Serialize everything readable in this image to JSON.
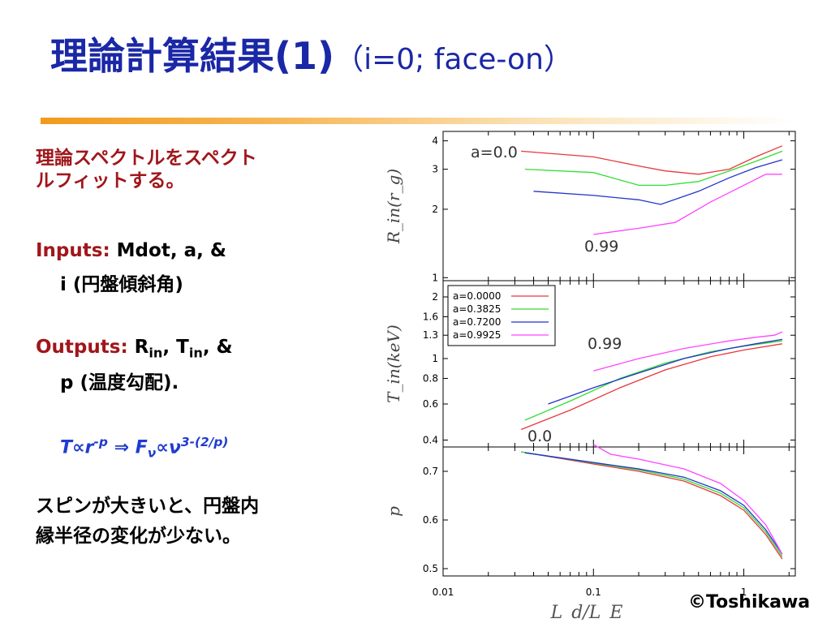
{
  "title": {
    "main": "理論計算結果(1)",
    "sub": "（i=0; face-on）"
  },
  "bullets": {
    "intro": [
      "理論スペクトルをスペクト",
      "ルフィットする。"
    ],
    "inputs_label": "Inputs:",
    "inputs_text": "Mdot, a, &",
    "inputs_line2": "i (円盤傾斜角)",
    "outputs_label": "Outputs:",
    "outputs_R": "R",
    "outputs_T": "T",
    "outputs_sub": "in",
    "outputs_tail": ", &",
    "outputs_line2": "p (温度勾配).",
    "formula": {
      "lhs": "T∝r",
      "exp1": "-p",
      "mid": " ⇒ F",
      "sub": "ν",
      "rhs": "∝ν",
      "exp2": "3-(2/p)"
    },
    "spin": [
      "スピンが大きいと、円盤内",
      "縁半径の変化が少ない。"
    ]
  },
  "copyright": "©Toshikawa",
  "chart_data": {
    "type": "line",
    "xscale": "log",
    "xlim": [
      0.01,
      2.2
    ],
    "xticks": [
      "0.01",
      "0.1",
      "1"
    ],
    "xlabel": "L_d/L_E",
    "colors": {
      "red": "#e8373c",
      "green": "#33dd33",
      "blue": "#2233cc",
      "magenta": "#ff44ff"
    },
    "legend": {
      "position": "top-left of middle panel",
      "entries": [
        "a=0.0000",
        "a=0.3825",
        "a=0.7200",
        "a=0.9925"
      ]
    },
    "panels": [
      {
        "id": "rin",
        "ylabel": "R_in(r_g)",
        "yscale": "log",
        "ylim": [
          0.97,
          4.4
        ],
        "yticks": [
          "1",
          "2",
          "3",
          "4"
        ],
        "annotations": [
          "a=0.0",
          "0.99"
        ],
        "series": [
          {
            "x": [
              0.033,
              0.1,
              0.2,
              0.3,
              0.5,
              0.8,
              1.2,
              1.8
            ],
            "y": [
              3.6,
              3.4,
              3.1,
              2.95,
              2.85,
              3.0,
              3.4,
              3.8
            ]
          },
          {
            "x": [
              0.035,
              0.1,
              0.2,
              0.3,
              0.5,
              0.8,
              1.2,
              1.8
            ],
            "y": [
              3.0,
              2.9,
              2.55,
              2.55,
              2.65,
              2.95,
              3.25,
              3.6
            ]
          },
          {
            "x": [
              0.04,
              0.1,
              0.2,
              0.28,
              0.5,
              0.8,
              1.2,
              1.8
            ],
            "y": [
              2.4,
              2.3,
              2.2,
              2.1,
              2.4,
              2.75,
              3.05,
              3.3
            ]
          },
          {
            "x": [
              0.1,
              0.2,
              0.35,
              0.6,
              1.0,
              1.4,
              1.8
            ],
            "y": [
              1.55,
              1.65,
              1.75,
              2.15,
              2.55,
              2.85,
              2.85
            ]
          }
        ]
      },
      {
        "id": "tin",
        "ylabel": "T_in(keV)",
        "yscale": "log",
        "ylim": [
          0.37,
          2.4
        ],
        "yticks": [
          "0.4",
          "0.6",
          "0.8",
          "1",
          "1.3",
          "1.6",
          "2"
        ],
        "annotations": [
          "0.99",
          "0.0"
        ],
        "series": [
          {
            "x": [
              0.033,
              0.07,
              0.15,
              0.3,
              0.6,
              1.0,
              1.8
            ],
            "y": [
              0.45,
              0.56,
              0.72,
              0.88,
              1.02,
              1.1,
              1.18
            ]
          },
          {
            "x": [
              0.035,
              0.07,
              0.15,
              0.3,
              0.6,
              1.0,
              1.8
            ],
            "y": [
              0.5,
              0.62,
              0.8,
              0.95,
              1.08,
              1.15,
              1.22
            ]
          },
          {
            "x": [
              0.05,
              0.1,
              0.2,
              0.4,
              0.8,
              1.2,
              1.8
            ],
            "y": [
              0.6,
              0.72,
              0.85,
              1.0,
              1.12,
              1.18,
              1.24
            ]
          },
          {
            "x": [
              0.1,
              0.2,
              0.4,
              0.8,
              1.2,
              1.6,
              1.8
            ],
            "y": [
              0.87,
              1.0,
              1.12,
              1.22,
              1.27,
              1.3,
              1.35
            ]
          }
        ]
      },
      {
        "id": "p",
        "ylabel": "p",
        "yscale": "linear",
        "ylim": [
          0.485,
          0.75
        ],
        "yticks": [
          "0.5",
          "0.6",
          "0.7"
        ],
        "annotations": [],
        "series": [
          {
            "x": [
              0.033,
              0.1,
              0.2,
              0.4,
              0.7,
              1.0,
              1.4,
              1.8
            ],
            "y": [
              0.74,
              0.715,
              0.7,
              0.68,
              0.65,
              0.62,
              0.57,
              0.52
            ]
          },
          {
            "x": [
              0.033,
              0.1,
              0.2,
              0.4,
              0.7,
              1.0,
              1.4,
              1.8
            ],
            "y": [
              0.74,
              0.717,
              0.703,
              0.684,
              0.655,
              0.625,
              0.575,
              0.525
            ]
          },
          {
            "x": [
              0.035,
              0.1,
              0.2,
              0.4,
              0.7,
              1.0,
              1.4,
              1.8
            ],
            "y": [
              0.738,
              0.718,
              0.705,
              0.688,
              0.66,
              0.63,
              0.58,
              0.53
            ]
          },
          {
            "x": [
              0.1,
              0.13,
              0.2,
              0.4,
              0.7,
              1.0,
              1.4,
              1.8
            ],
            "y": [
              0.755,
              0.735,
              0.725,
              0.705,
              0.675,
              0.64,
              0.59,
              0.53
            ]
          }
        ]
      }
    ]
  }
}
